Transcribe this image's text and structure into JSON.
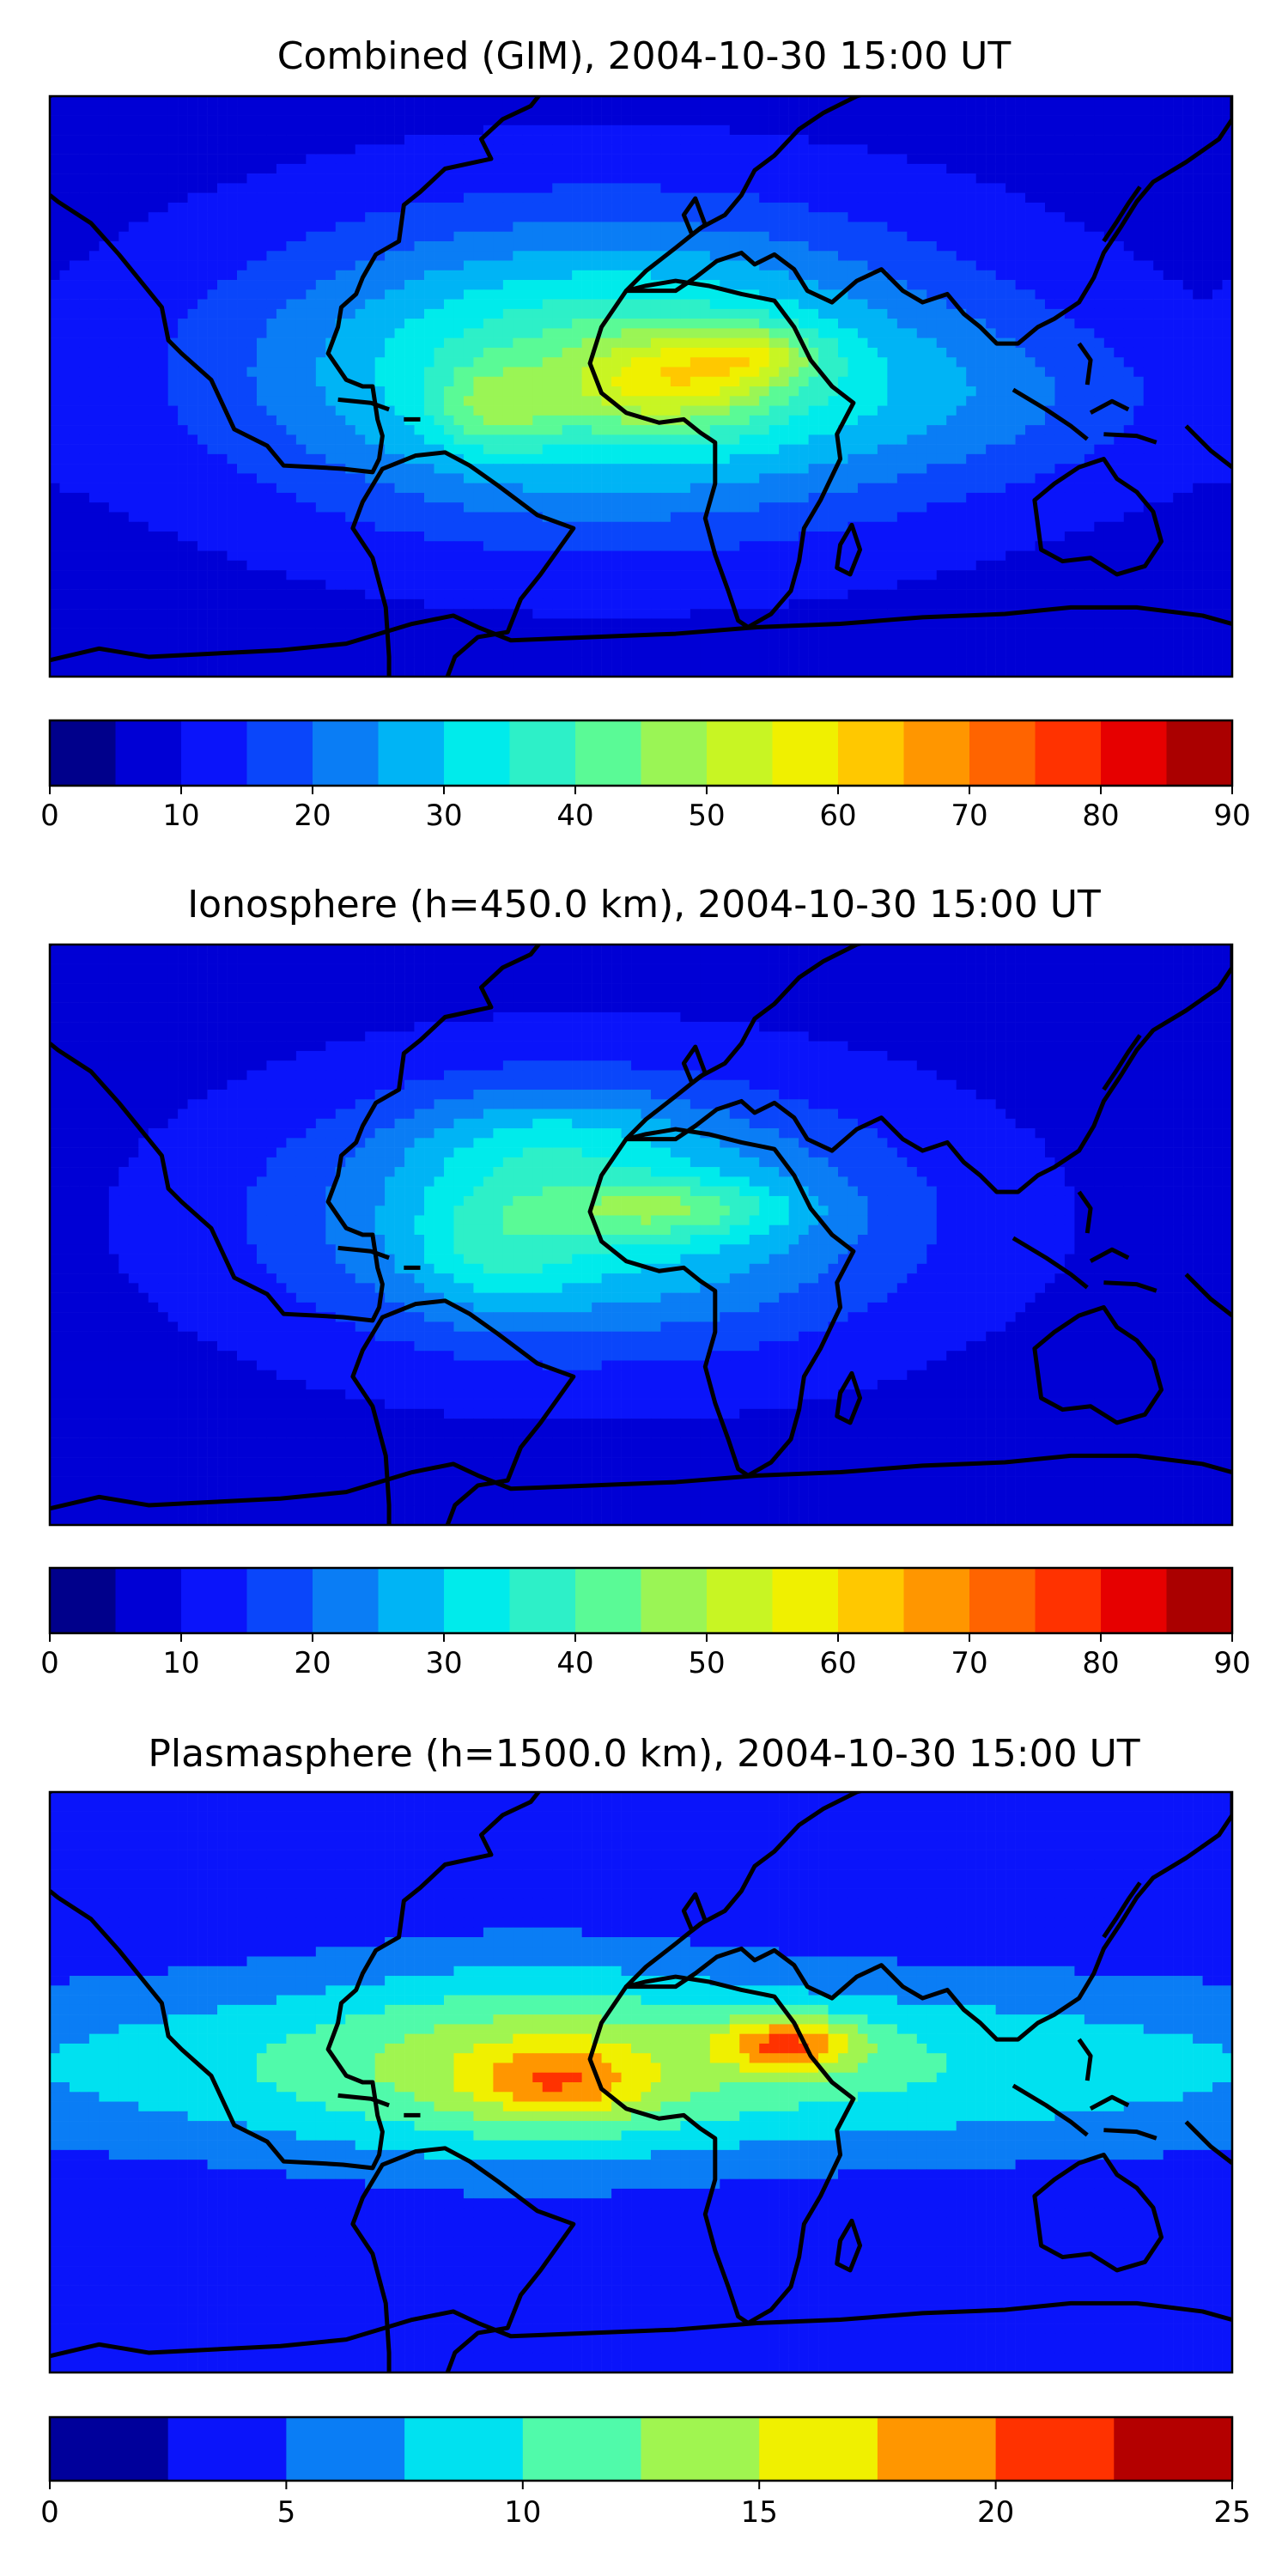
{
  "chart_data": [
    {
      "type": "heatmap",
      "title": "Combined (GIM), 2004-10-30 15:00 UT",
      "colorbar": {
        "min": 0,
        "max": 90,
        "step": 5,
        "ticks": [
          0,
          10,
          20,
          30,
          40,
          50,
          60,
          70,
          80,
          90
        ],
        "colors": [
          "#00008b",
          "#0000d5",
          "#0a14fa",
          "#0a46fa",
          "#0a7df5",
          "#00b4f5",
          "#00ebeb",
          "#2df0c8",
          "#5afa96",
          "#9af555",
          "#c8f523",
          "#f0f000",
          "#ffc800",
          "#ff9600",
          "#ff6400",
          "#ff3200",
          "#e60000",
          "#aa0000"
        ]
      },
      "field": {
        "background": 8,
        "blobs": [
          {
            "lon": -10,
            "lat": 5,
            "slon": 75,
            "slat": 32,
            "amp": 34
          },
          {
            "lon": 10,
            "lat": 2,
            "slon": 22,
            "slat": 10,
            "amp": 18
          },
          {
            "lon": 35,
            "lat": 10,
            "slon": 14,
            "slat": 6,
            "amp": 14
          },
          {
            "lon": -45,
            "lat": -7,
            "slon": 12,
            "slat": 9,
            "amp": 12
          },
          {
            "lon": 110,
            "lat": -5,
            "slon": 45,
            "slat": 18,
            "amp": 6
          }
        ]
      }
    },
    {
      "type": "heatmap",
      "title": "Ionosphere  (h=450.0 km), 2004-10-30 15:00 UT",
      "colorbar": {
        "min": 0,
        "max": 90,
        "step": 5,
        "ticks": [
          0,
          10,
          20,
          30,
          40,
          50,
          60,
          70,
          80,
          90
        ],
        "colors": [
          "#00008b",
          "#0000d5",
          "#0a14fa",
          "#0a46fa",
          "#0a7df5",
          "#00b4f5",
          "#00ebeb",
          "#2df0c8",
          "#5afa96",
          "#9af555",
          "#c8f523",
          "#f0f000",
          "#ffc800",
          "#ff9600",
          "#ff6400",
          "#ff3200",
          "#e60000",
          "#aa0000"
        ]
      },
      "field": {
        "background": 8,
        "blobs": [
          {
            "lon": -15,
            "lat": 5,
            "slon": 65,
            "slat": 28,
            "amp": 26
          },
          {
            "lon": 10,
            "lat": 8,
            "slon": 25,
            "slat": 6,
            "amp": 14
          },
          {
            "lon": -45,
            "lat": -5,
            "slon": 18,
            "slat": 14,
            "amp": 8
          },
          {
            "lon": -30,
            "lat": 30,
            "slon": 30,
            "slat": 12,
            "amp": 8
          }
        ]
      }
    },
    {
      "type": "heatmap",
      "title": "Plasmasphere (h=1500.0 km), 2004-10-30 15:00 UT",
      "colorbar": {
        "min": 0,
        "max": 25,
        "step": 2.5,
        "ticks": [
          0,
          5,
          10,
          15,
          20,
          25
        ],
        "colors": [
          "#00009b",
          "#0a14fa",
          "#0a7df5",
          "#00e1f0",
          "#50faaa",
          "#a0f550",
          "#f0f000",
          "#ff9600",
          "#ff3200",
          "#b40000"
        ]
      },
      "field": {
        "background": 3,
        "blobs": [
          {
            "lon": 0,
            "lat": 5,
            "slon": 170,
            "slat": 20,
            "amp": 8
          },
          {
            "lon": 45,
            "lat": 12,
            "slon": 15,
            "slat": 6,
            "amp": 10
          },
          {
            "lon": -25,
            "lat": 0,
            "slon": 18,
            "slat": 8,
            "amp": 6
          },
          {
            "lon": -35,
            "lat": 7,
            "slon": 45,
            "slat": 25,
            "amp": 4
          }
        ]
      }
    }
  ]
}
